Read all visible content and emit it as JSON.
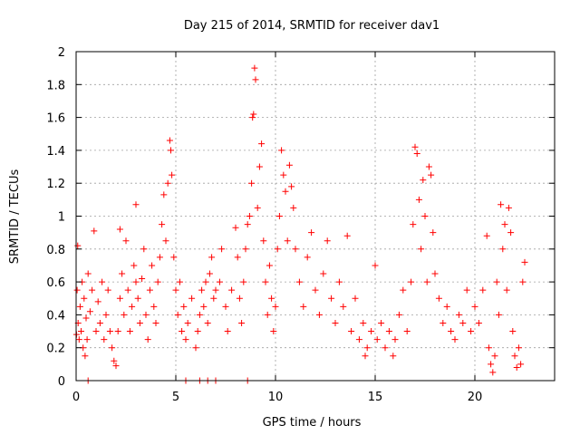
{
  "chart_data": {
    "type": "scatter",
    "title": "Day 215 of 2014, SRMTID for receiver dav1",
    "xlabel": "GPS time / hours",
    "ylabel": "SRMTID / TECUs",
    "xlim": [
      0,
      24
    ],
    "ylim": [
      0,
      2
    ],
    "xticks": [
      0,
      5,
      10,
      15,
      20
    ],
    "xtick_labels": [
      "0",
      "5",
      "10",
      "15",
      "20"
    ],
    "yticks": [
      0,
      0.2,
      0.4,
      0.6,
      0.8,
      1,
      1.2,
      1.4,
      1.6,
      1.8,
      2
    ],
    "ytick_labels": [
      "0",
      "0.2",
      "0.4",
      "0.6",
      "0.8",
      "1",
      "1.2",
      "1.4",
      "1.6",
      "1.8",
      "2"
    ],
    "grid": true,
    "marker": "+",
    "color": "#ff0000",
    "series": [
      {
        "name": "SRMTID",
        "points": [
          [
            0.02,
            0.28
          ],
          [
            0.05,
            0.55
          ],
          [
            0.08,
            0.82
          ],
          [
            0.1,
            0.35
          ],
          [
            0.15,
            0.25
          ],
          [
            0.2,
            0.45
          ],
          [
            0.25,
            0.3
          ],
          [
            0.3,
            0.6
          ],
          [
            0.35,
            0.2
          ],
          [
            0.4,
            0.5
          ],
          [
            0.45,
            0.15
          ],
          [
            0.5,
            0.38
          ],
          [
            0.55,
            0.25
          ],
          [
            0.6,
            0.65
          ],
          [
            0.7,
            0.42
          ],
          [
            0.8,
            0.55
          ],
          [
            0.9,
            0.91
          ],
          [
            1.0,
            0.3
          ],
          [
            1.1,
            0.48
          ],
          [
            1.2,
            0.35
          ],
          [
            1.3,
            0.6
          ],
          [
            1.4,
            0.25
          ],
          [
            1.5,
            0.4
          ],
          [
            1.6,
            0.55
          ],
          [
            1.7,
            0.3
          ],
          [
            1.8,
            0.2
          ],
          [
            1.9,
            0.12
          ],
          [
            2.0,
            0.09
          ],
          [
            2.1,
            0.3
          ],
          [
            2.2,
            0.5
          ],
          [
            2.2,
            0.92
          ],
          [
            2.3,
            0.65
          ],
          [
            2.4,
            0.4
          ],
          [
            2.5,
            0.85
          ],
          [
            2.6,
            0.55
          ],
          [
            2.7,
            0.3
          ],
          [
            2.8,
            0.45
          ],
          [
            2.9,
            0.7
          ],
          [
            3.0,
            1.07
          ],
          [
            3.0,
            0.6
          ],
          [
            3.1,
            0.5
          ],
          [
            3.2,
            0.35
          ],
          [
            3.3,
            0.62
          ],
          [
            3.4,
            0.8
          ],
          [
            3.5,
            0.4
          ],
          [
            3.6,
            0.25
          ],
          [
            3.7,
            0.55
          ],
          [
            3.8,
            0.7
          ],
          [
            3.9,
            0.45
          ],
          [
            4.0,
            0.35
          ],
          [
            4.1,
            0.6
          ],
          [
            4.2,
            0.75
          ],
          [
            4.3,
            0.95
          ],
          [
            4.4,
            1.13
          ],
          [
            4.5,
            0.85
          ],
          [
            4.6,
            1.2
          ],
          [
            4.7,
            1.46
          ],
          [
            4.75,
            1.4
          ],
          [
            4.8,
            1.25
          ],
          [
            4.9,
            0.75
          ],
          [
            5.0,
            0.55
          ],
          [
            5.1,
            0.4
          ],
          [
            5.2,
            0.6
          ],
          [
            5.3,
            0.3
          ],
          [
            5.4,
            0.45
          ],
          [
            5.5,
            0.25
          ],
          [
            5.6,
            0.35
          ],
          [
            5.8,
            0.5
          ],
          [
            6.0,
            0.2
          ],
          [
            6.1,
            0.3
          ],
          [
            6.2,
            0.4
          ],
          [
            6.3,
            0.55
          ],
          [
            6.4,
            0.45
          ],
          [
            6.5,
            0.6
          ],
          [
            6.6,
            0.35
          ],
          [
            6.7,
            0.65
          ],
          [
            6.8,
            0.75
          ],
          [
            6.9,
            0.5
          ],
          [
            7.0,
            0.55
          ],
          [
            7.2,
            0.6
          ],
          [
            7.3,
            0.8
          ],
          [
            7.5,
            0.45
          ],
          [
            7.6,
            0.3
          ],
          [
            7.8,
            0.55
          ],
          [
            8.0,
            0.93
          ],
          [
            8.1,
            0.75
          ],
          [
            8.2,
            0.5
          ],
          [
            8.3,
            0.35
          ],
          [
            8.4,
            0.6
          ],
          [
            8.5,
            0.8
          ],
          [
            8.6,
            0.95
          ],
          [
            8.7,
            1.0
          ],
          [
            8.8,
            1.2
          ],
          [
            8.85,
            1.6
          ],
          [
            8.9,
            1.62
          ],
          [
            8.95,
            1.9
          ],
          [
            9.0,
            1.83
          ],
          [
            9.1,
            1.05
          ],
          [
            9.2,
            1.3
          ],
          [
            9.3,
            1.44
          ],
          [
            9.4,
            0.85
          ],
          [
            9.5,
            0.6
          ],
          [
            9.6,
            0.4
          ],
          [
            9.7,
            0.7
          ],
          [
            9.8,
            0.5
          ],
          [
            9.9,
            0.3
          ],
          [
            10.0,
            0.45
          ],
          [
            10.1,
            0.8
          ],
          [
            10.2,
            1.0
          ],
          [
            10.3,
            1.4
          ],
          [
            10.4,
            1.25
          ],
          [
            10.5,
            1.15
          ],
          [
            10.6,
            0.85
          ],
          [
            10.7,
            1.31
          ],
          [
            10.8,
            1.18
          ],
          [
            10.9,
            1.05
          ],
          [
            11.0,
            0.8
          ],
          [
            11.2,
            0.6
          ],
          [
            11.4,
            0.45
          ],
          [
            11.6,
            0.75
          ],
          [
            11.8,
            0.9
          ],
          [
            12.0,
            0.55
          ],
          [
            12.2,
            0.4
          ],
          [
            12.4,
            0.65
          ],
          [
            12.6,
            0.85
          ],
          [
            12.8,
            0.5
          ],
          [
            13.0,
            0.35
          ],
          [
            13.2,
            0.6
          ],
          [
            13.4,
            0.45
          ],
          [
            13.6,
            0.88
          ],
          [
            13.8,
            0.3
          ],
          [
            14.0,
            0.5
          ],
          [
            14.2,
            0.25
          ],
          [
            14.4,
            0.35
          ],
          [
            14.5,
            0.15
          ],
          [
            14.6,
            0.2
          ],
          [
            14.8,
            0.3
          ],
          [
            15.0,
            0.7
          ],
          [
            15.1,
            0.25
          ],
          [
            15.3,
            0.35
          ],
          [
            15.5,
            0.2
          ],
          [
            15.7,
            0.3
          ],
          [
            15.9,
            0.15
          ],
          [
            16.0,
            0.25
          ],
          [
            16.2,
            0.4
          ],
          [
            16.4,
            0.55
          ],
          [
            16.6,
            0.3
          ],
          [
            16.8,
            0.6
          ],
          [
            16.9,
            0.95
          ],
          [
            17.0,
            1.42
          ],
          [
            17.1,
            1.38
          ],
          [
            17.2,
            1.1
          ],
          [
            17.3,
            0.8
          ],
          [
            17.4,
            1.22
          ],
          [
            17.5,
            1.0
          ],
          [
            17.6,
            0.6
          ],
          [
            17.7,
            1.3
          ],
          [
            17.8,
            1.25
          ],
          [
            17.9,
            0.9
          ],
          [
            18.0,
            0.65
          ],
          [
            18.2,
            0.5
          ],
          [
            18.4,
            0.35
          ],
          [
            18.6,
            0.45
          ],
          [
            18.8,
            0.3
          ],
          [
            19.0,
            0.25
          ],
          [
            19.2,
            0.4
          ],
          [
            19.4,
            0.35
          ],
          [
            19.6,
            0.55
          ],
          [
            19.8,
            0.3
          ],
          [
            20.0,
            0.45
          ],
          [
            20.2,
            0.35
          ],
          [
            20.4,
            0.55
          ],
          [
            20.6,
            0.88
          ],
          [
            20.7,
            0.2
          ],
          [
            20.8,
            0.1
          ],
          [
            20.9,
            0.05
          ],
          [
            21.0,
            0.15
          ],
          [
            21.1,
            0.6
          ],
          [
            21.2,
            0.4
          ],
          [
            21.3,
            1.07
          ],
          [
            21.4,
            0.8
          ],
          [
            21.5,
            0.95
          ],
          [
            21.6,
            0.55
          ],
          [
            21.7,
            1.05
          ],
          [
            21.8,
            0.9
          ],
          [
            21.9,
            0.3
          ],
          [
            22.0,
            0.15
          ],
          [
            22.1,
            0.08
          ],
          [
            22.2,
            0.2
          ],
          [
            22.3,
            0.1
          ],
          [
            22.4,
            0.6
          ],
          [
            22.5,
            0.72
          ],
          [
            0.6,
            0.0
          ],
          [
            5.5,
            0.0
          ],
          [
            6.2,
            0.0
          ],
          [
            6.6,
            0.0
          ],
          [
            7.0,
            0.0
          ],
          [
            8.6,
            0.0
          ]
        ]
      }
    ]
  }
}
